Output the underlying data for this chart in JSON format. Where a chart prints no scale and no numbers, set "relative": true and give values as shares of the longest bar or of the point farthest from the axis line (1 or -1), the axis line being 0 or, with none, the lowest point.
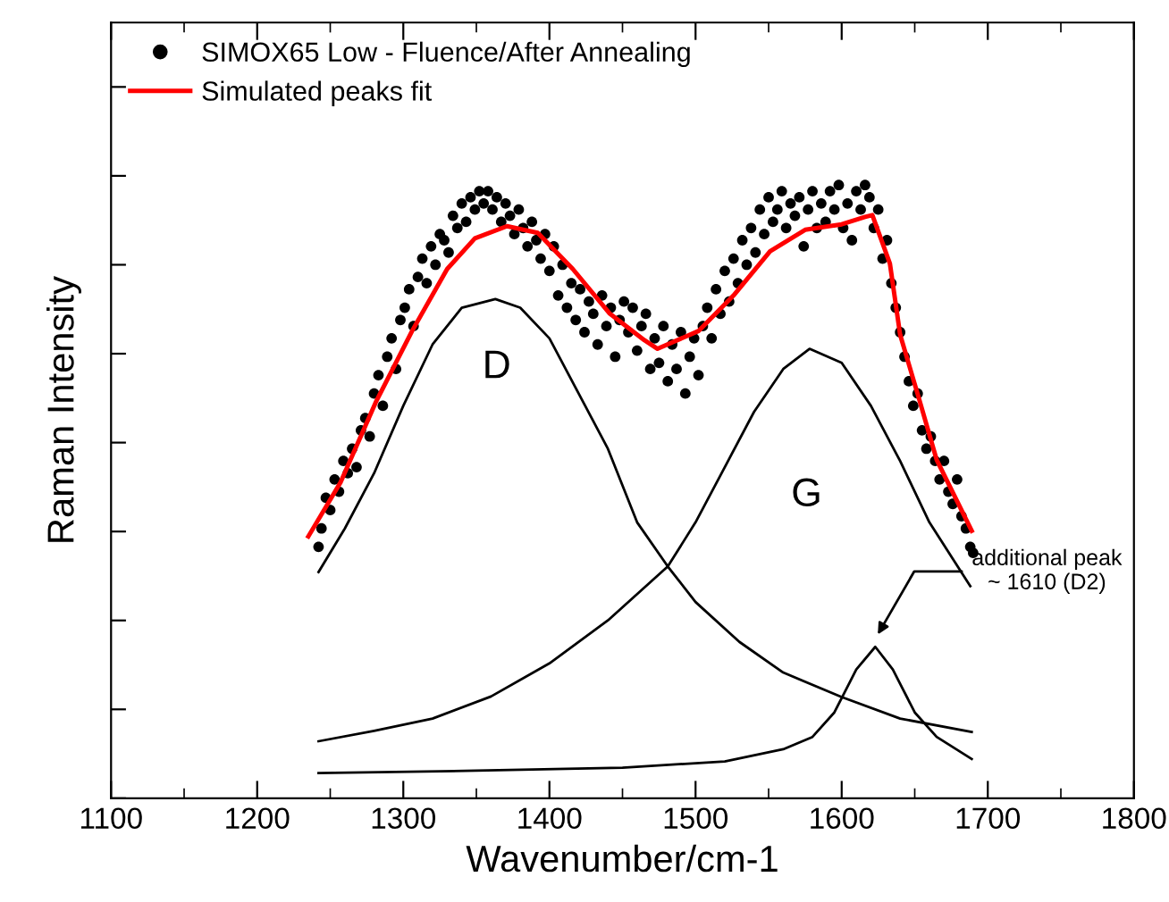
{
  "chart_data": {
    "type": "scatter",
    "xlabel": "Wavenumber/cm-1",
    "ylabel": "Raman Intensity",
    "relative": true,
    "xlim": [
      1100,
      1800
    ],
    "xticks": [
      1100,
      1200,
      1300,
      1400,
      1500,
      1600,
      1700,
      1800
    ],
    "grid": false,
    "legend": "top left",
    "series": [
      {
        "name": "SIMOX65 Low - Fluence/After Annealing",
        "marker": "circle",
        "color": "#000000",
        "x": [
          1242,
          1244,
          1247,
          1250,
          1253,
          1256,
          1259,
          1262,
          1265,
          1268,
          1271,
          1274,
          1277,
          1280,
          1283,
          1286,
          1289,
          1292,
          1295,
          1298,
          1301,
          1304,
          1307,
          1310,
          1313,
          1316,
          1319,
          1322,
          1325,
          1328,
          1331,
          1334,
          1337,
          1340,
          1343,
          1346,
          1349,
          1352,
          1355,
          1358,
          1361,
          1364,
          1367,
          1370,
          1373,
          1376,
          1379,
          1382,
          1385,
          1388,
          1391,
          1394,
          1397,
          1400,
          1403,
          1406,
          1409,
          1412,
          1415,
          1418,
          1421,
          1424,
          1427,
          1430,
          1433,
          1436,
          1439,
          1442,
          1445,
          1448,
          1451,
          1454,
          1457,
          1460,
          1463,
          1466,
          1469,
          1472,
          1475,
          1478,
          1481,
          1484,
          1487,
          1490,
          1493,
          1496,
          1499,
          1502,
          1505,
          1508,
          1511,
          1514,
          1517,
          1520,
          1523,
          1526,
          1529,
          1532,
          1535,
          1538,
          1541,
          1544,
          1547,
          1550,
          1553,
          1556,
          1559,
          1562,
          1565,
          1568,
          1571,
          1574,
          1577,
          1580,
          1583,
          1586,
          1589,
          1592,
          1595,
          1598,
          1601,
          1604,
          1607,
          1610,
          1613,
          1616,
          1619,
          1622,
          1625,
          1628,
          1631,
          1634,
          1637,
          1640,
          1643,
          1646,
          1649,
          1652,
          1655,
          1658,
          1661,
          1664,
          1667,
          1670,
          1673,
          1676,
          1679,
          1682,
          1685,
          1688,
          1690
        ],
        "values": [
          0.41,
          0.44,
          0.49,
          0.47,
          0.52,
          0.5,
          0.55,
          0.53,
          0.57,
          0.54,
          0.6,
          0.62,
          0.59,
          0.66,
          0.69,
          0.64,
          0.72,
          0.75,
          0.7,
          0.78,
          0.8,
          0.83,
          0.77,
          0.85,
          0.88,
          0.84,
          0.9,
          0.87,
          0.92,
          0.91,
          0.89,
          0.95,
          0.93,
          0.97,
          0.94,
          0.98,
          0.96,
          0.99,
          0.97,
          0.99,
          0.96,
          0.98,
          0.94,
          0.97,
          0.95,
          0.92,
          0.96,
          0.93,
          0.9,
          0.94,
          0.91,
          0.88,
          0.92,
          0.86,
          0.9,
          0.82,
          0.87,
          0.8,
          0.84,
          0.78,
          0.83,
          0.76,
          0.81,
          0.79,
          0.74,
          0.82,
          0.77,
          0.8,
          0.72,
          0.78,
          0.81,
          0.76,
          0.8,
          0.73,
          0.77,
          0.79,
          0.7,
          0.75,
          0.71,
          0.77,
          0.68,
          0.74,
          0.7,
          0.76,
          0.66,
          0.72,
          0.75,
          0.69,
          0.77,
          0.8,
          0.75,
          0.83,
          0.79,
          0.86,
          0.81,
          0.88,
          0.84,
          0.91,
          0.87,
          0.93,
          0.89,
          0.96,
          0.92,
          0.98,
          0.94,
          0.96,
          0.99,
          0.93,
          0.97,
          0.95,
          0.98,
          0.9,
          0.96,
          0.99,
          0.93,
          0.97,
          0.94,
          0.99,
          0.96,
          1.0,
          0.93,
          0.97,
          0.91,
          0.99,
          0.96,
          1.0,
          0.98,
          0.93,
          0.96,
          0.88,
          0.91,
          0.84,
          0.8,
          0.76,
          0.72,
          0.68,
          0.64,
          0.66,
          0.6,
          0.57,
          0.59,
          0.55,
          0.52,
          0.55,
          0.5,
          0.48,
          0.52,
          0.46,
          0.44,
          0.41,
          0.4
        ]
      },
      {
        "name": "Simulated peaks fit",
        "type": "line",
        "marker": "none",
        "color": "#ff0000",
        "x": [
          1235,
          1257,
          1281,
          1306,
          1330,
          1349,
          1371,
          1392,
          1416,
          1441,
          1465,
          1474,
          1502,
          1526,
          1551,
          1575,
          1600,
          1616,
          1621,
          1633,
          1640,
          1653,
          1665,
          1689
        ],
        "values": [
          0.427,
          0.515,
          0.645,
          0.762,
          0.863,
          0.913,
          0.933,
          0.922,
          0.863,
          0.791,
          0.747,
          0.733,
          0.762,
          0.82,
          0.892,
          0.927,
          0.936,
          0.948,
          0.951,
          0.872,
          0.756,
          0.651,
          0.552,
          0.436
        ]
      },
      {
        "type": "line",
        "marker": "none",
        "color": "#000000",
        "x": [
          1242,
          1260,
          1280,
          1300,
          1320,
          1340,
          1363,
          1380,
          1400,
          1420,
          1440,
          1460,
          1481,
          1500,
          1530,
          1560,
          1600,
          1640,
          1689
        ],
        "values": [
          0.369,
          0.44,
          0.53,
          0.64,
          0.74,
          0.8,
          0.814,
          0.8,
          0.75,
          0.66,
          0.57,
          0.45,
          0.378,
          0.32,
          0.255,
          0.205,
          0.165,
          0.13,
          0.108
        ]
      },
      {
        "type": "line",
        "marker": "none",
        "color": "#000000",
        "x": [
          1242,
          1280,
          1320,
          1360,
          1400,
          1440,
          1481,
          1500,
          1520,
          1540,
          1560,
          1578,
          1600,
          1620,
          1640,
          1660,
          1688
        ],
        "values": [
          0.093,
          0.11,
          0.13,
          0.166,
          0.22,
          0.29,
          0.378,
          0.45,
          0.54,
          0.63,
          0.7,
          0.733,
          0.71,
          0.64,
          0.55,
          0.45,
          0.346
        ]
      },
      {
        "type": "line",
        "marker": "none",
        "color": "#000000",
        "x": [
          1242,
          1350,
          1450,
          1520,
          1560,
          1580,
          1595,
          1610,
          1623,
          1635,
          1650,
          1665,
          1689
        ],
        "values": [
          0.041,
          0.045,
          0.05,
          0.06,
          0.08,
          0.1,
          0.14,
          0.21,
          0.247,
          0.21,
          0.14,
          0.1,
          0.064
        ]
      }
    ],
    "annotations": [
      "D",
      "G",
      {
        "text": "additional peak\n~ 1610 (D2)",
        "x": 1623,
        "y": 0.26
      }
    ]
  }
}
